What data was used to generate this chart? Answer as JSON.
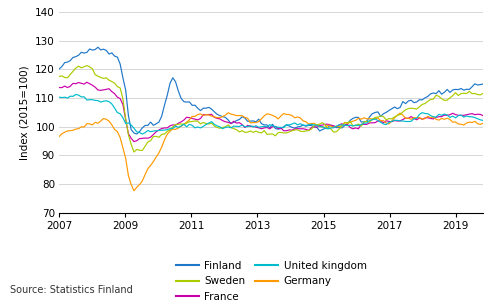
{
  "title": "",
  "ylabel": "Index (2015=100)",
  "ylim": [
    70,
    140
  ],
  "yticks": [
    70,
    80,
    90,
    100,
    110,
    120,
    130,
    140
  ],
  "xlim_start": 2007.0,
  "xlim_end": 2019.83,
  "xticks": [
    2007,
    2009,
    2011,
    2013,
    2015,
    2017,
    2019
  ],
  "colors": {
    "Finland": "#1f77c9",
    "France": "#cc00aa",
    "Germany": "#ff9900",
    "Sweden": "#aacc00",
    "United kingdom": "#00bbcc"
  },
  "source_text": "Source: Statistics Finland",
  "background_color": "#ffffff",
  "grid_color": "#d0d0d0"
}
